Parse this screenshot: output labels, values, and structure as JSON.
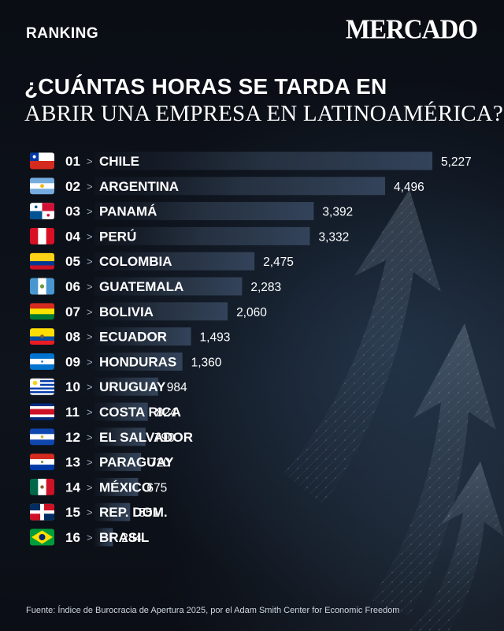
{
  "header": {
    "section": "RANKING",
    "brand": "MERCADO",
    "title_line1": "¿CUÁNTAS HORAS SE TARDA EN",
    "title_line2": "ABRIR UNA EMPRESA EN LATINOAMÉRICA?"
  },
  "separator": ">",
  "colors": {
    "bar_start": "#283444",
    "bar_end": "#1a2230",
    "text": "#ffffff",
    "accent_arrow": "#9aaabb"
  },
  "chart_data": {
    "type": "bar",
    "orientation": "horizontal",
    "categories": [
      "CHILE",
      "ARGENTINA",
      "PANAMÁ",
      "PERÚ",
      "COLOMBIA",
      "GUATEMALA",
      "BOLIVIA",
      "ECUADOR",
      "HONDURAS",
      "URUGUAY",
      "COSTA RICA",
      "EL SALVADOR",
      "PARAGUAY",
      "MÉXICO",
      "REP. DOM.",
      "BRASIL"
    ],
    "ranks": [
      "01",
      "02",
      "03",
      "04",
      "05",
      "06",
      "07",
      "08",
      "09",
      "10",
      "11",
      "12",
      "13",
      "14",
      "15",
      "16"
    ],
    "values": [
      5227,
      4496,
      3392,
      3332,
      2475,
      2283,
      2060,
      1493,
      1360,
      984,
      824,
      790,
      720,
      675,
      551,
      284
    ],
    "value_labels": [
      "5,227",
      "4,496",
      "3,392",
      "3,332",
      "2,475",
      "2,283",
      "2,060",
      "1,493",
      "1,360",
      "984",
      "824",
      "790",
      "720",
      "675",
      "551",
      "284"
    ],
    "flags": [
      "chile",
      "argentina",
      "panama",
      "peru",
      "colombia",
      "guatemala",
      "bolivia",
      "ecuador",
      "honduras",
      "uruguay",
      "costa-rica",
      "el-salvador",
      "paraguay",
      "mexico",
      "dominican-republic",
      "brazil"
    ]
  },
  "footer": {
    "source": "Fuente: Índice de Burocracia de Apertura 2025, por el Adam Smith Center for Economic Freedom"
  }
}
